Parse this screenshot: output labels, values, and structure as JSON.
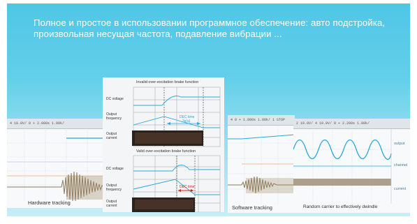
{
  "headline": "Полное и простое в использовании программное обеспечение: авто подстройка, произвольная несущая частота, подавление вибрации ...",
  "panels": {
    "left": {
      "topbar": "4 10.0V/ 0   +  2.000s 1.00k/",
      "caption": "Hardware tracking"
    },
    "center": {
      "invalid_title": "Invalid over-excitation brake function",
      "valid_title": "Valid over-excitation brake function",
      "labels": {
        "dc_voltage": "DC voltage",
        "output_frequency": "Output frequency",
        "output_current": "Output current"
      },
      "annotation_top": "DEC time",
      "annotation_top_sub": "3s(a)",
      "annotation_bottom": "DEC time"
    },
    "right_left": {
      "topbar": "4  0      +  1.000s 1.00k/  1 STOP",
      "caption": "Software tracking"
    },
    "right": {
      "topbar": "2  10.0V/  4   10.0V/  0     +  2.200s 1.00k/",
      "caption": "Random carrier to effectively dwindle",
      "legend": [
        "output",
        "channel",
        "current"
      ]
    }
  },
  "colors": {
    "accent": "#56c8e8",
    "trace_cyan": "#2aa7d4",
    "trace_brown": "#8c7a5e",
    "warning": "#d42020"
  }
}
